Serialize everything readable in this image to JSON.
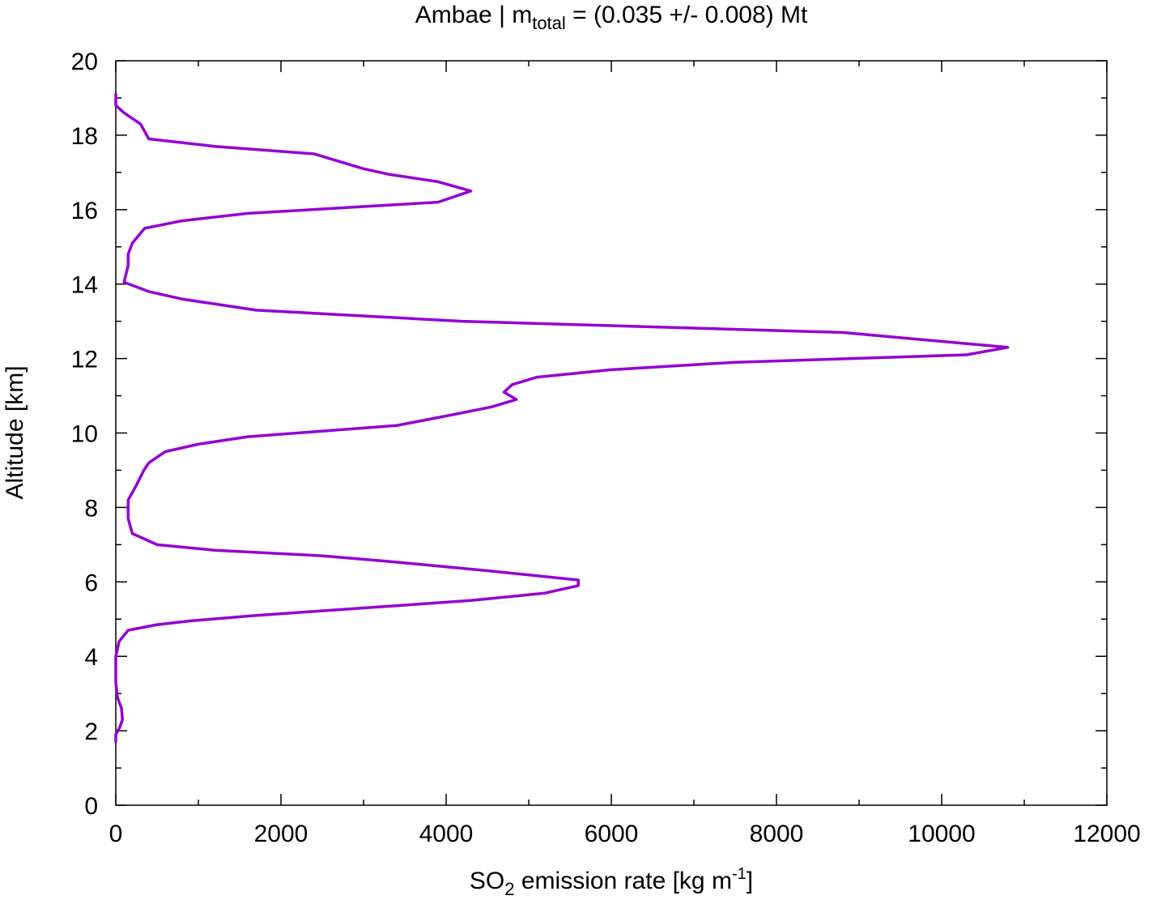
{
  "chart_data": {
    "type": "line",
    "title": {
      "prefix": "Ambae | m",
      "subscript": "total",
      "suffix": " = (0.035 +/- 0.008) Mt"
    },
    "xlabel": {
      "prefix": "SO",
      "subscript": "2",
      "middle": " emission rate [kg m",
      "superscript": "-1",
      "suffix": "]"
    },
    "ylabel": "Altitude [km]",
    "xlim": [
      0,
      12000
    ],
    "ylim": [
      0,
      20
    ],
    "x_ticks": [
      "0",
      "2000",
      "4000",
      "6000",
      "8000",
      "10000",
      "12000"
    ],
    "x_tick_values": [
      0,
      2000,
      4000,
      6000,
      8000,
      10000,
      12000
    ],
    "y_ticks": [
      "0",
      "2",
      "4",
      "6",
      "8",
      "10",
      "12",
      "14",
      "16",
      "18",
      "20"
    ],
    "y_tick_values": [
      0,
      2,
      4,
      6,
      8,
      10,
      12,
      14,
      16,
      18,
      20
    ],
    "grid": false,
    "line_color": "#9400d3",
    "series": [
      {
        "points": [
          [
            0,
            1.7
          ],
          [
            0,
            1.9
          ],
          [
            50,
            2.1
          ],
          [
            80,
            2.3
          ],
          [
            70,
            2.6
          ],
          [
            20,
            2.9
          ],
          [
            0,
            3.3
          ],
          [
            0,
            4.0
          ],
          [
            40,
            4.4
          ],
          [
            150,
            4.7
          ],
          [
            500,
            4.85
          ],
          [
            900,
            4.95
          ],
          [
            1700,
            5.1
          ],
          [
            3000,
            5.3
          ],
          [
            4300,
            5.5
          ],
          [
            5200,
            5.7
          ],
          [
            5600,
            5.9
          ],
          [
            5600,
            6.05
          ],
          [
            4500,
            6.3
          ],
          [
            3300,
            6.55
          ],
          [
            2500,
            6.7
          ],
          [
            1200,
            6.85
          ],
          [
            500,
            7.0
          ],
          [
            200,
            7.3
          ],
          [
            150,
            7.7
          ],
          [
            150,
            8.2
          ],
          [
            250,
            8.6
          ],
          [
            340,
            9.0
          ],
          [
            400,
            9.2
          ],
          [
            600,
            9.5
          ],
          [
            1000,
            9.7
          ],
          [
            1600,
            9.9
          ],
          [
            3400,
            10.2
          ],
          [
            4100,
            10.5
          ],
          [
            4550,
            10.7
          ],
          [
            4850,
            10.9
          ],
          [
            4700,
            11.1
          ],
          [
            4800,
            11.3
          ],
          [
            5100,
            11.5
          ],
          [
            6000,
            11.7
          ],
          [
            7500,
            11.9
          ],
          [
            10300,
            12.1
          ],
          [
            10800,
            12.3
          ],
          [
            8800,
            12.7
          ],
          [
            4200,
            13.0
          ],
          [
            1700,
            13.3
          ],
          [
            800,
            13.6
          ],
          [
            400,
            13.8
          ],
          [
            100,
            14.05
          ],
          [
            150,
            14.5
          ],
          [
            150,
            14.8
          ],
          [
            200,
            15.1
          ],
          [
            350,
            15.5
          ],
          [
            800,
            15.7
          ],
          [
            1600,
            15.9
          ],
          [
            3900,
            16.2
          ],
          [
            4300,
            16.5
          ],
          [
            3900,
            16.75
          ],
          [
            3300,
            16.95
          ],
          [
            3000,
            17.1
          ],
          [
            2400,
            17.5
          ],
          [
            1200,
            17.7
          ],
          [
            400,
            17.9
          ],
          [
            300,
            18.3
          ],
          [
            100,
            18.6
          ],
          [
            0,
            18.8
          ],
          [
            0,
            19.1
          ]
        ]
      }
    ]
  }
}
